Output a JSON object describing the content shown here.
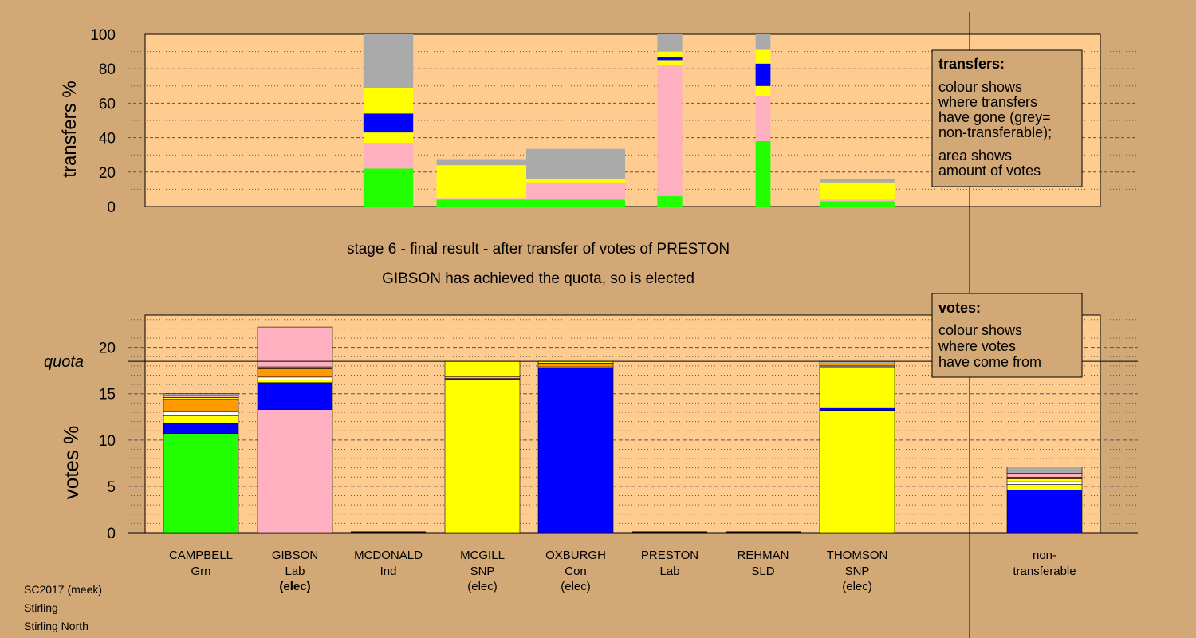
{
  "chart_data": {
    "type": "bar",
    "stage_title": "stage 6 - final result - after transfer of votes of PRESTON",
    "stage_subtitle": "GIBSON has achieved the quota, so is elected",
    "transfers_panel": {
      "ylabel": "transfers %",
      "ylim": [
        0,
        100
      ],
      "yticks": [
        0,
        20,
        40,
        60,
        80,
        100
      ],
      "legend_title": "transfers:",
      "legend_lines": [
        "colour shows",
        "where transfers",
        "have gone (grey=",
        "non-transferable);",
        "area shows",
        "amount of votes"
      ],
      "columns": [
        {
          "candidate": "MCDONALD",
          "width_pct": 0.5,
          "segments": [
            {
              "party": "Grn",
              "value": 22
            },
            {
              "party": "Lab",
              "value": 15
            },
            {
              "party": "SNP",
              "value": 6
            },
            {
              "party": "Con",
              "value": 11
            },
            {
              "party": "SNP",
              "value": 15
            },
            {
              "party": "non-transferable",
              "value": 31
            }
          ]
        },
        {
          "candidate": "MCGILL",
          "width_pct": 0.92,
          "segments": [
            {
              "party": "Grn",
              "value": 4
            },
            {
              "party": "Lab",
              "value": 1
            },
            {
              "party": "SNP",
              "value": 19
            },
            {
              "party": "non-transferable",
              "value": 3.5
            }
          ]
        },
        {
          "candidate": "OXBURGH",
          "width_pct": 1.2,
          "segments": [
            {
              "party": "Grn",
              "value": 4
            },
            {
              "party": "Lab",
              "value": 10
            },
            {
              "party": "SNP",
              "value": 2
            },
            {
              "party": "non-transferable",
              "value": 17.5
            }
          ]
        },
        {
          "candidate": "PRESTON",
          "width_pct": 0.25,
          "segments": [
            {
              "party": "Grn",
              "value": 6
            },
            {
              "party": "Lab",
              "value": 76
            },
            {
              "party": "SNP",
              "value": 3
            },
            {
              "party": "Con",
              "value": 2
            },
            {
              "party": "SNP",
              "value": 3
            },
            {
              "party": "non-transferable",
              "value": 10
            }
          ]
        },
        {
          "candidate": "REHMAN",
          "width_pct": 0.15,
          "segments": [
            {
              "party": "Grn",
              "value": 38
            },
            {
              "party": "Lab",
              "value": 26
            },
            {
              "party": "SNP",
              "value": 6
            },
            {
              "party": "Con",
              "value": 13
            },
            {
              "party": "SNP",
              "value": 8
            },
            {
              "party": "non-transferable",
              "value": 9
            }
          ]
        },
        {
          "candidate": "THOMSON",
          "width_pct": 0.75,
          "segments": [
            {
              "party": "Grn",
              "value": 3
            },
            {
              "party": "Lab",
              "value": 1
            },
            {
              "party": "SNP",
              "value": 10
            },
            {
              "party": "non-transferable",
              "value": 2
            }
          ]
        }
      ]
    },
    "votes_panel": {
      "ylabel": "votes %",
      "ylim": [
        0,
        23.5
      ],
      "yticks": [
        0,
        5,
        10,
        15,
        20
      ],
      "quota": 18.5,
      "quota_label": "quota",
      "legend_title": "votes:",
      "legend_lines": [
        "colour shows",
        "where votes",
        "have come from"
      ],
      "candidates": [
        {
          "name": "CAMPBELL",
          "party": "Grn",
          "status": "",
          "segments": [
            {
              "party": "Grn",
              "value": 10.7
            },
            {
              "party": "Con",
              "value": 1.1
            },
            {
              "party": "SNP",
              "value": 0.8
            },
            {
              "party": "Ind",
              "value": 0.5
            },
            {
              "party": "SLD",
              "value": 1.3
            },
            {
              "party": "SNP",
              "value": 0.2
            },
            {
              "party": "Lab",
              "value": 0.2
            },
            {
              "party": "non-transferable",
              "value": 0.2
            }
          ]
        },
        {
          "name": "GIBSON",
          "party": "Lab",
          "status": "(elec)",
          "segments": [
            {
              "party": "Lab",
              "value": 13.3
            },
            {
              "party": "Con",
              "value": 2.9
            },
            {
              "party": "SNP",
              "value": 0.3
            },
            {
              "party": "Ind",
              "value": 0.3
            },
            {
              "party": "SLD",
              "value": 0.9
            },
            {
              "party": "non-transferable",
              "value": 0.2
            },
            {
              "party": "Lab",
              "value": 4.3
            }
          ]
        },
        {
          "name": "MCDONALD",
          "party": "Ind",
          "status": "",
          "segments": []
        },
        {
          "name": "MCGILL",
          "party": "SNP",
          "status": "(elec)",
          "segments": [
            {
              "party": "SNP",
              "value": 16.5
            },
            {
              "party": "Con",
              "value": 0.15
            },
            {
              "party": "Ind",
              "value": 0.15
            },
            {
              "party": "SLD",
              "value": 0.1
            },
            {
              "party": "SNP",
              "value": 1.6
            }
          ]
        },
        {
          "name": "OXBURGH",
          "party": "Con",
          "status": "(elec)",
          "segments": [
            {
              "party": "Con",
              "value": 17.8
            },
            {
              "party": "Ind",
              "value": 0.1
            },
            {
              "party": "SLD",
              "value": 0.4
            },
            {
              "party": "SNP",
              "value": 0.2
            }
          ]
        },
        {
          "name": "PRESTON",
          "party": "Lab",
          "status": "",
          "segments": []
        },
        {
          "name": "REHMAN",
          "party": "SLD",
          "status": "",
          "segments": []
        },
        {
          "name": "THOMSON",
          "party": "SNP",
          "status": "(elec)",
          "segments": [
            {
              "party": "SNP",
              "value": 13.2
            },
            {
              "party": "Con",
              "value": 0.3
            },
            {
              "party": "SNP",
              "value": 4.4
            },
            {
              "party": "Ind",
              "value": 0.1
            },
            {
              "party": "SLD",
              "value": 0.2
            },
            {
              "party": "non-transferable",
              "value": 0.3
            }
          ]
        }
      ],
      "nontransferable": {
        "name": "non-",
        "name2": "transferable",
        "segments": [
          {
            "party": "Con",
            "value": 4.6
          },
          {
            "party": "SNP",
            "value": 0.6
          },
          {
            "party": "Ind",
            "value": 0.3
          },
          {
            "party": "SNP",
            "value": 0.3
          },
          {
            "party": "SLD",
            "value": 0.2
          },
          {
            "party": "Lab",
            "value": 0.4
          },
          {
            "party": "non-transferable",
            "value": 0.7
          }
        ]
      }
    },
    "party_colors": {
      "Grn": "#22ff00",
      "Lab": "#ffb0c0",
      "SNP": "#ffff00",
      "Con": "#0000ff",
      "Ind": "#ffffff",
      "SLD": "#ff9900",
      "non-transferable": "#aaaaaa"
    }
  },
  "footer": {
    "line1": "SC2017 (meek)",
    "line2": "Stirling",
    "line3": "Stirling North"
  }
}
